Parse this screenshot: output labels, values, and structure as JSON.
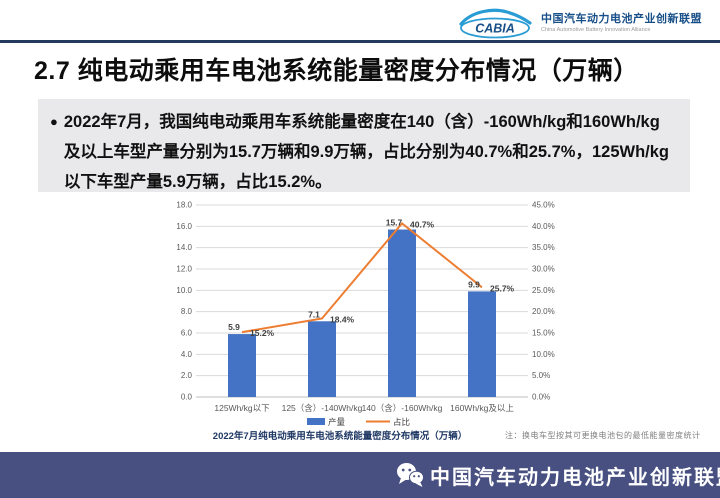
{
  "header": {
    "brand": "CABIA",
    "org_cn": "中国汽车动力电池产业创新联盟",
    "org_en": "China Automotive Battery Innovation Alliance"
  },
  "page_title": "2.7 纯电动乘用车电池系统能量密度分布情况（万辆）",
  "bullet": {
    "marker": "●",
    "text": "2022年7月，我国纯电动乘用车系统能量密度在140（含）-160Wh/kg和160Wh/kg及以上车型产量分别为15.7万辆和9.9万辆，占比分别为40.7%和25.7%，125Wh/kg以下车型产量5.9万辆，占比15.2%。"
  },
  "chart_data": {
    "type": "bar",
    "title": "2022年7月纯电动乘用车电池系统能量密度分布情况（万辆）",
    "note": "注：换电车型按其可更换电池包的最低能量密度统计",
    "categories": [
      "125Wh/kg以下",
      "125（含）-140Wh/kg",
      "140（含）-160Wh/kg",
      "160Wh/kg及以上"
    ],
    "series": [
      {
        "name": "产量",
        "type": "bar",
        "axis": "left",
        "color": "#4472c4",
        "values": [
          5.9,
          7.1,
          15.7,
          9.9
        ],
        "labels": [
          "5.9",
          "7.1",
          "15.7",
          "9.9"
        ]
      },
      {
        "name": "占比",
        "type": "line",
        "axis": "right",
        "color": "#ed7d31",
        "values": [
          15.2,
          18.4,
          40.7,
          25.7
        ],
        "labels": [
          "15.2%",
          "18.4%",
          "40.7%",
          "25.7%"
        ]
      }
    ],
    "left_axis": {
      "min": 0,
      "max": 18,
      "ticks": [
        "0.0",
        "2.0",
        "4.0",
        "6.0",
        "8.0",
        "10.0",
        "12.0",
        "14.0",
        "16.0",
        "18.0"
      ]
    },
    "right_axis": {
      "min": 0,
      "max": 45,
      "ticks": [
        "0.0%",
        "5.0%",
        "10.0%",
        "15.0%",
        "20.0%",
        "25.0%",
        "30.0%",
        "35.0%",
        "40.0%",
        "45.0%"
      ]
    },
    "legend_position": "bottom",
    "grid": true,
    "colors": {
      "grid": "#d9d9d9",
      "baseline": "#bfbfbf",
      "axis_label": "#595959",
      "data_label": "#404040",
      "title": "#1f3864",
      "note": "#808080"
    }
  },
  "footer": {
    "org": "中国汽车动力电池产业创新联盟"
  }
}
